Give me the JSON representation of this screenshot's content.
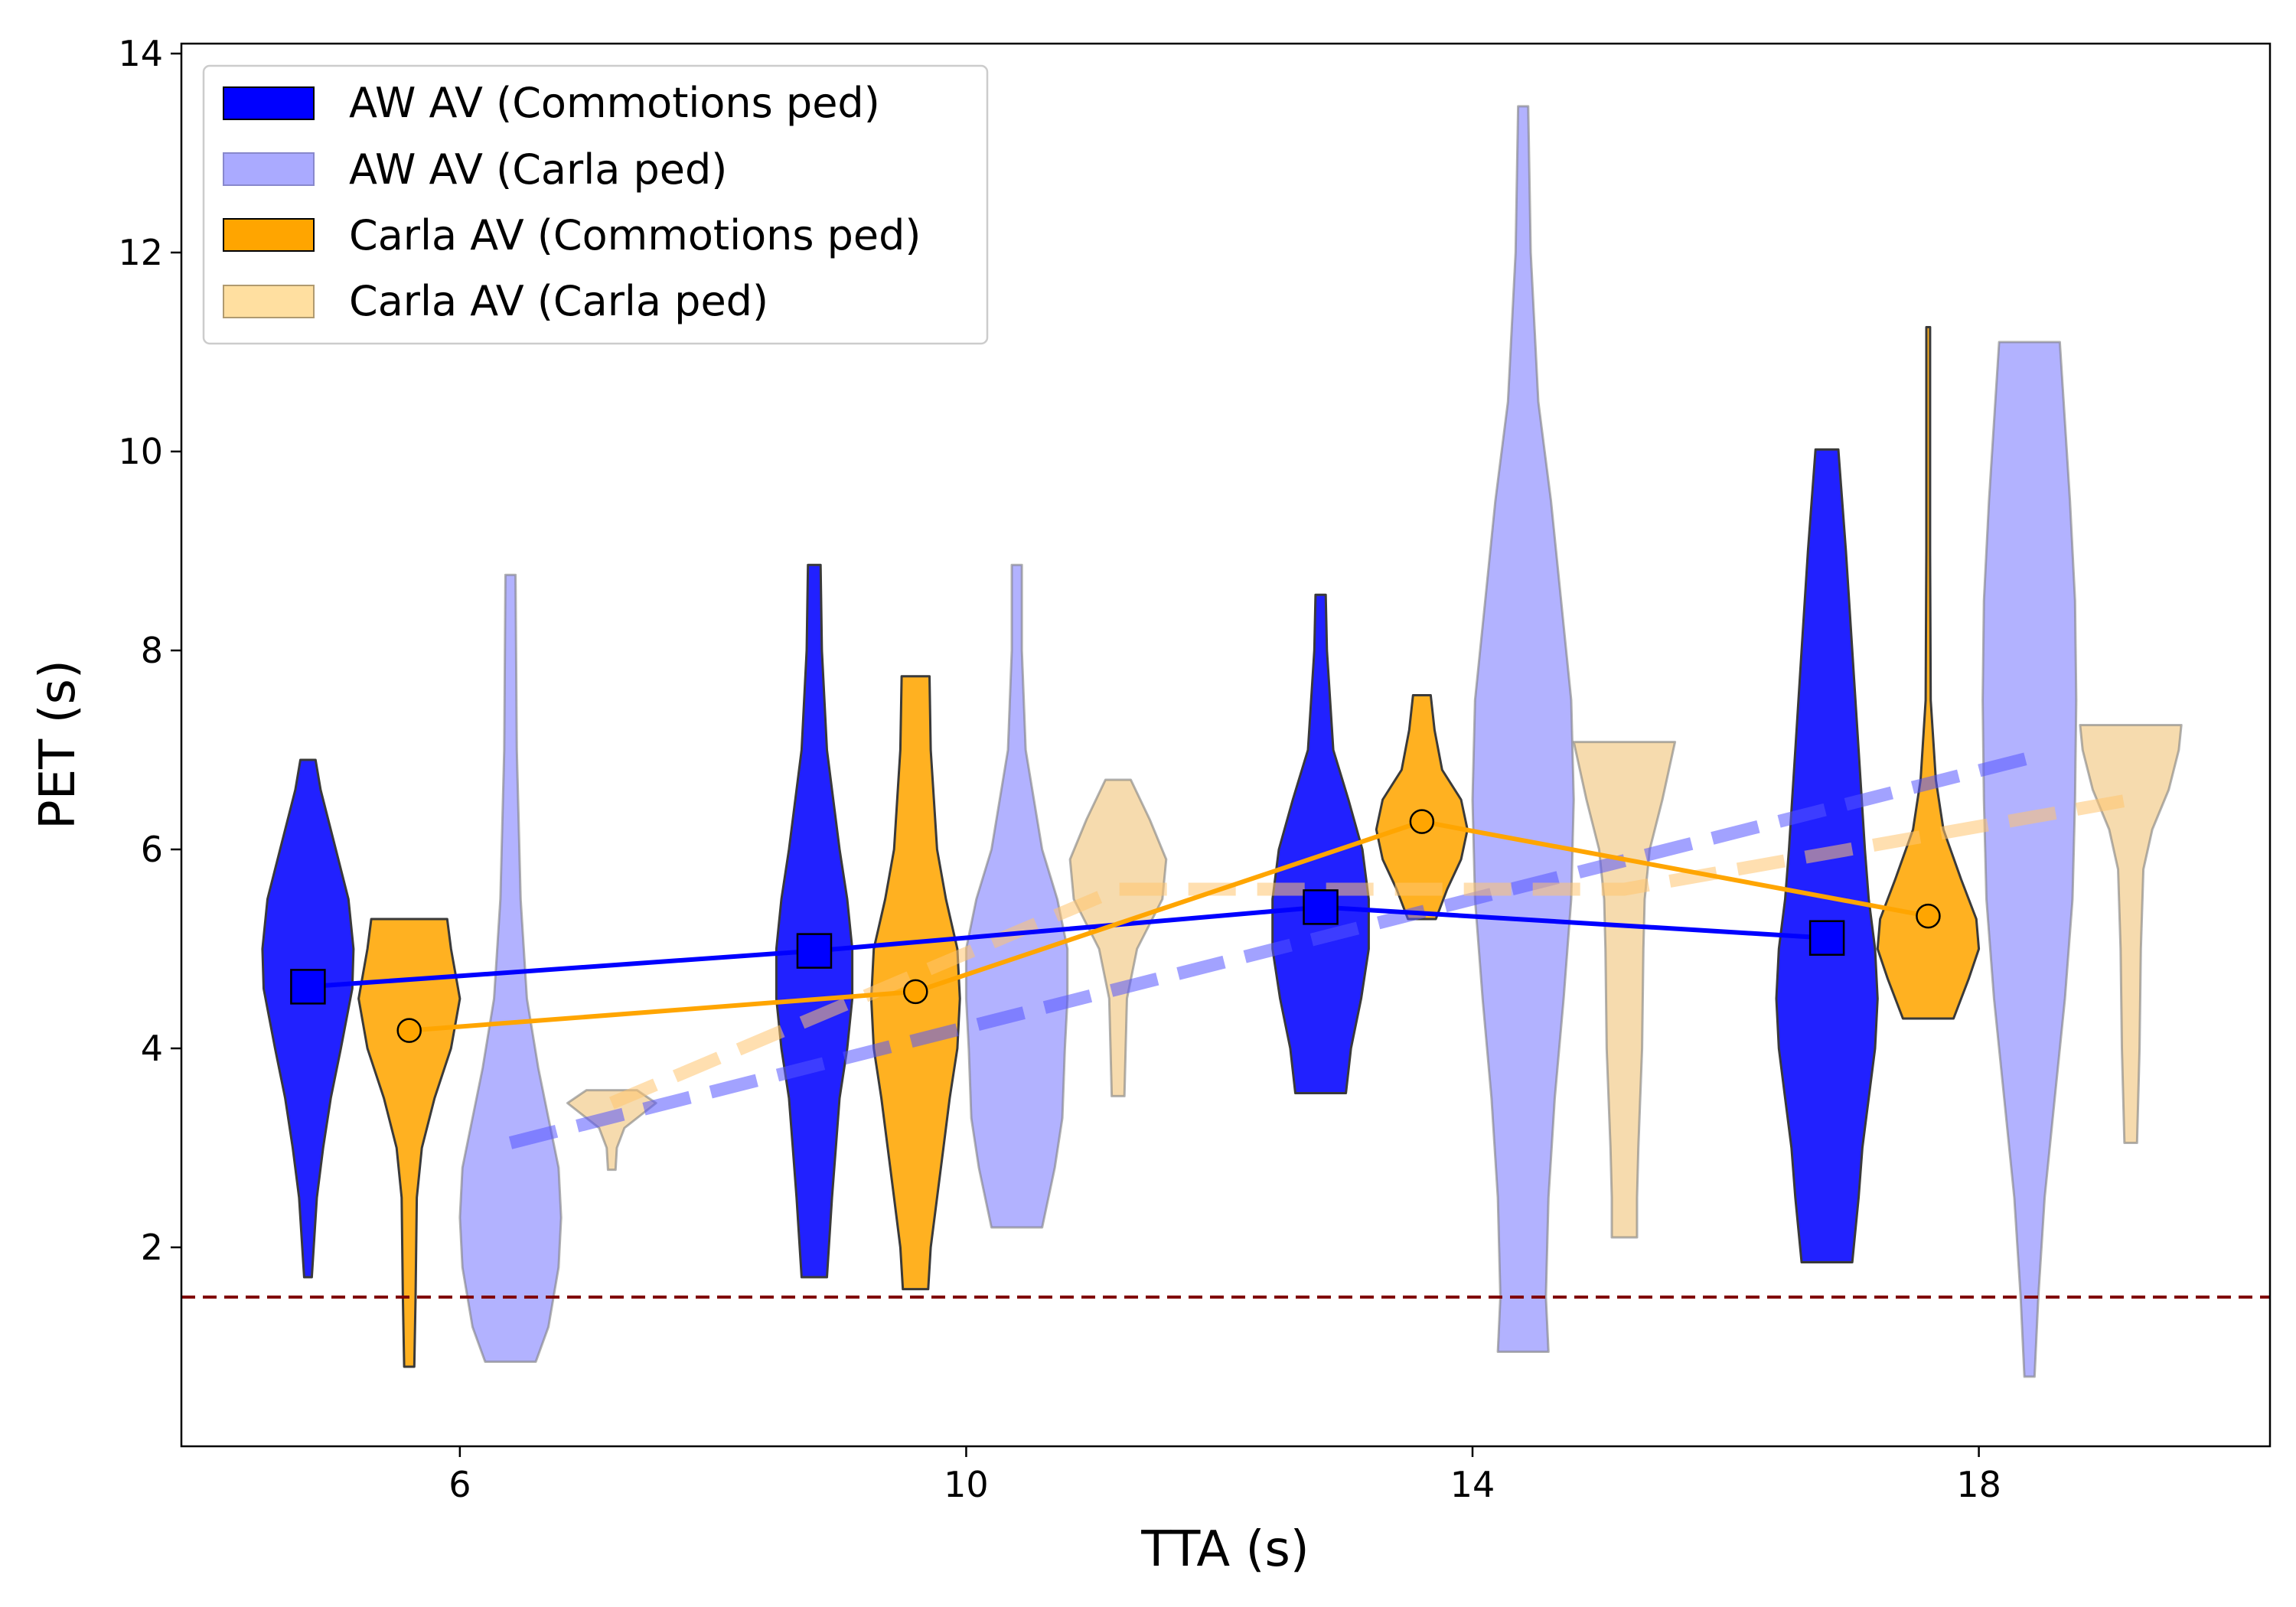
{
  "chart_data": {
    "type": "violin",
    "xlabel": "TTA (s)",
    "ylabel": "PET (s)",
    "xlim": [
      3.8,
      20.3
    ],
    "ylim": [
      0.0,
      14.1
    ],
    "xticks": [
      6,
      10,
      14,
      18
    ],
    "yticks": [
      2,
      4,
      6,
      8,
      10,
      12,
      14
    ],
    "legend_position": "top-left",
    "legend": [
      {
        "label": "AW AV (Commotions ped)",
        "color": "#0000ff",
        "opacity": 0.87
      },
      {
        "label": "AW AV (Carla ped)",
        "color": "#aaaaff",
        "opacity": 1.0
      },
      {
        "label": "Carla AV (Commotions ped)",
        "color": "#ffa500",
        "opacity": 1.0
      },
      {
        "label": "Carla AV (Carla ped)",
        "color": "#ffdfa0",
        "opacity": 1.0
      }
    ],
    "threshold_line": {
      "y": 1.5,
      "color": "#800000",
      "style": "dashed"
    },
    "violins": [
      {
        "series": "AW AV (Commotions ped)",
        "x": 4.8,
        "color": "#0000ff",
        "opacity": 0.87,
        "profile": [
          [
            1.7,
            0.03
          ],
          [
            2.5,
            0.07
          ],
          [
            3.0,
            0.12
          ],
          [
            3.5,
            0.18
          ],
          [
            4.0,
            0.26
          ],
          [
            4.6,
            0.35
          ],
          [
            5.0,
            0.36
          ],
          [
            5.5,
            0.32
          ],
          [
            6.0,
            0.22
          ],
          [
            6.6,
            0.1
          ],
          [
            6.9,
            0.06
          ]
        ]
      },
      {
        "series": "AW AV (Commotions ped)",
        "x": 8.8,
        "color": "#0000ff",
        "opacity": 0.87,
        "profile": [
          [
            1.7,
            0.1
          ],
          [
            2.5,
            0.14
          ],
          [
            3.0,
            0.17
          ],
          [
            3.5,
            0.2
          ],
          [
            4.0,
            0.26
          ],
          [
            4.5,
            0.3
          ],
          [
            5.0,
            0.3
          ],
          [
            5.5,
            0.26
          ],
          [
            6.0,
            0.2
          ],
          [
            7.0,
            0.1
          ],
          [
            8.0,
            0.06
          ],
          [
            8.86,
            0.05
          ]
        ]
      },
      {
        "series": "AW AV (Commotions ped)",
        "x": 12.8,
        "color": "#0000ff",
        "opacity": 0.87,
        "profile": [
          [
            3.55,
            0.2
          ],
          [
            4.0,
            0.24
          ],
          [
            4.5,
            0.32
          ],
          [
            5.0,
            0.38
          ],
          [
            5.5,
            0.38
          ],
          [
            6.0,
            0.33
          ],
          [
            6.5,
            0.22
          ],
          [
            7.0,
            0.1
          ],
          [
            8.0,
            0.05
          ],
          [
            8.56,
            0.04
          ]
        ]
      },
      {
        "series": "AW AV (Commotions ped)",
        "x": 16.8,
        "color": "#0000ff",
        "opacity": 0.87,
        "profile": [
          [
            1.85,
            0.2
          ],
          [
            2.5,
            0.25
          ],
          [
            3.0,
            0.28
          ],
          [
            3.5,
            0.33
          ],
          [
            4.0,
            0.38
          ],
          [
            4.5,
            0.4
          ],
          [
            5.0,
            0.38
          ],
          [
            5.5,
            0.33
          ],
          [
            6.0,
            0.3
          ],
          [
            7.0,
            0.25
          ],
          [
            8.0,
            0.2
          ],
          [
            9.0,
            0.15
          ],
          [
            10.02,
            0.09
          ]
        ]
      },
      {
        "series": "AW AV (Carla ped)",
        "x": 6.4,
        "color": "#aaaaff",
        "opacity": 0.9,
        "profile": [
          [
            0.85,
            0.2
          ],
          [
            1.2,
            0.3
          ],
          [
            1.8,
            0.38
          ],
          [
            2.3,
            0.4
          ],
          [
            2.8,
            0.38
          ],
          [
            3.3,
            0.3
          ],
          [
            3.8,
            0.22
          ],
          [
            4.5,
            0.13
          ],
          [
            5.5,
            0.08
          ],
          [
            7.0,
            0.05
          ],
          [
            8.76,
            0.04
          ]
        ]
      },
      {
        "series": "AW AV (Carla ped)",
        "x": 10.4,
        "color": "#aaaaff",
        "opacity": 0.9,
        "profile": [
          [
            2.2,
            0.2
          ],
          [
            2.8,
            0.3
          ],
          [
            3.3,
            0.36
          ],
          [
            4.0,
            0.38
          ],
          [
            4.5,
            0.4
          ],
          [
            5.0,
            0.4
          ],
          [
            5.5,
            0.32
          ],
          [
            6.0,
            0.2
          ],
          [
            7.0,
            0.07
          ],
          [
            8.0,
            0.04
          ],
          [
            8.86,
            0.04
          ]
        ]
      },
      {
        "series": "AW AV (Carla ped)",
        "x": 14.4,
        "color": "#aaaaff",
        "opacity": 0.9,
        "profile": [
          [
            0.95,
            0.2
          ],
          [
            1.5,
            0.18
          ],
          [
            2.5,
            0.2
          ],
          [
            3.5,
            0.25
          ],
          [
            4.5,
            0.32
          ],
          [
            5.5,
            0.38
          ],
          [
            6.5,
            0.4
          ],
          [
            7.5,
            0.38
          ],
          [
            8.5,
            0.3
          ],
          [
            9.5,
            0.22
          ],
          [
            10.5,
            0.12
          ],
          [
            12.0,
            0.06
          ],
          [
            13.47,
            0.04
          ]
        ]
      },
      {
        "series": "AW AV (Carla ped)",
        "x": 18.4,
        "color": "#aaaaff",
        "opacity": 0.9,
        "profile": [
          [
            0.7,
            0.04
          ],
          [
            1.5,
            0.07
          ],
          [
            2.5,
            0.12
          ],
          [
            3.5,
            0.2
          ],
          [
            4.5,
            0.28
          ],
          [
            5.5,
            0.34
          ],
          [
            6.5,
            0.36
          ],
          [
            7.5,
            0.37
          ],
          [
            8.5,
            0.36
          ],
          [
            9.5,
            0.32
          ],
          [
            10.5,
            0.27
          ],
          [
            11.1,
            0.24
          ]
        ]
      },
      {
        "series": "Carla AV (Commotions ped)",
        "x": 5.6,
        "color": "#ffa500",
        "opacity": 0.87,
        "profile": [
          [
            0.8,
            0.04
          ],
          [
            1.5,
            0.05
          ],
          [
            2.5,
            0.06
          ],
          [
            3.0,
            0.1
          ],
          [
            3.5,
            0.2
          ],
          [
            4.0,
            0.33
          ],
          [
            4.5,
            0.4
          ],
          [
            5.0,
            0.33
          ],
          [
            5.3,
            0.3
          ]
        ]
      },
      {
        "series": "Carla AV (Commotions ped)",
        "x": 9.6,
        "color": "#ffa500",
        "opacity": 0.87,
        "profile": [
          [
            1.58,
            0.1
          ],
          [
            2.0,
            0.12
          ],
          [
            2.5,
            0.17
          ],
          [
            3.0,
            0.22
          ],
          [
            3.5,
            0.27
          ],
          [
            4.0,
            0.33
          ],
          [
            4.5,
            0.35
          ],
          [
            5.0,
            0.33
          ],
          [
            5.5,
            0.24
          ],
          [
            6.0,
            0.17
          ],
          [
            7.0,
            0.12
          ],
          [
            7.74,
            0.11
          ]
        ]
      },
      {
        "series": "Carla AV (Commotions ped)",
        "x": 13.6,
        "color": "#ffa500",
        "opacity": 0.87,
        "profile": [
          [
            5.3,
            0.11
          ],
          [
            5.6,
            0.2
          ],
          [
            5.9,
            0.31
          ],
          [
            6.2,
            0.36
          ],
          [
            6.5,
            0.31
          ],
          [
            6.8,
            0.16
          ],
          [
            7.2,
            0.1
          ],
          [
            7.55,
            0.07
          ]
        ]
      },
      {
        "series": "Carla AV (Commotions ped)",
        "x": 17.6,
        "color": "#ffa500",
        "opacity": 0.87,
        "profile": [
          [
            4.3,
            0.2
          ],
          [
            4.7,
            0.32
          ],
          [
            5.0,
            0.4
          ],
          [
            5.3,
            0.38
          ],
          [
            5.7,
            0.26
          ],
          [
            6.2,
            0.12
          ],
          [
            6.7,
            0.06
          ],
          [
            7.5,
            0.02
          ],
          [
            9.0,
            0.015
          ],
          [
            11.25,
            0.015
          ]
        ]
      },
      {
        "series": "Carla AV (Carla ped)",
        "x": 7.2,
        "color": "#f5d5a0",
        "opacity": 0.85,
        "profile": [
          [
            2.78,
            0.03
          ],
          [
            3.0,
            0.04
          ],
          [
            3.2,
            0.1
          ],
          [
            3.35,
            0.25
          ],
          [
            3.45,
            0.35
          ],
          [
            3.58,
            0.2
          ]
        ]
      },
      {
        "series": "Carla AV (Carla ped)",
        "x": 11.2,
        "color": "#f5d5a0",
        "opacity": 0.85,
        "profile": [
          [
            3.52,
            0.05
          ],
          [
            4.0,
            0.06
          ],
          [
            4.5,
            0.07
          ],
          [
            5.0,
            0.15
          ],
          [
            5.5,
            0.35
          ],
          [
            5.9,
            0.38
          ],
          [
            6.3,
            0.25
          ],
          [
            6.7,
            0.1
          ]
        ]
      },
      {
        "series": "Carla AV (Carla ped)",
        "x": 15.2,
        "color": "#f5d5a0",
        "opacity": 0.85,
        "profile": [
          [
            2.1,
            0.1
          ],
          [
            2.5,
            0.1
          ],
          [
            3.0,
            0.11
          ],
          [
            4.0,
            0.14
          ],
          [
            5.0,
            0.15
          ],
          [
            5.5,
            0.16
          ],
          [
            6.0,
            0.2
          ],
          [
            6.5,
            0.3
          ],
          [
            7.08,
            0.4
          ]
        ]
      },
      {
        "series": "Carla AV (Carla ped)",
        "x": 19.2,
        "color": "#f5d5a0",
        "opacity": 0.85,
        "profile": [
          [
            3.05,
            0.05
          ],
          [
            4.0,
            0.07
          ],
          [
            5.0,
            0.08
          ],
          [
            5.8,
            0.1
          ],
          [
            6.2,
            0.17
          ],
          [
            6.6,
            0.3
          ],
          [
            7.0,
            0.38
          ],
          [
            7.25,
            0.4
          ]
        ]
      }
    ],
    "mean_lines": [
      {
        "name": "AW AV (Commotions ped)",
        "color": "#0000ff",
        "marker": "square",
        "points": [
          [
            4.8,
            4.62
          ],
          [
            8.8,
            4.98
          ],
          [
            12.8,
            5.42
          ],
          [
            16.8,
            5.11
          ]
        ]
      },
      {
        "name": "Carla AV (Commotions ped)",
        "color": "#ffa500",
        "marker": "circle",
        "points": [
          [
            5.6,
            4.18
          ],
          [
            9.6,
            4.57
          ],
          [
            13.6,
            6.28
          ],
          [
            17.6,
            5.33
          ]
        ]
      }
    ],
    "trend_lines": [
      {
        "name": "AW AV (Carla ped)",
        "color": "#5555ff",
        "opacity": 0.55,
        "style": "dashed",
        "points": [
          [
            6.4,
            3.05
          ],
          [
            18.4,
            6.92
          ]
        ]
      },
      {
        "name": "Carla AV (Carla ped)",
        "color": "#ffc570",
        "opacity": 0.55,
        "style": "dashed",
        "points": [
          [
            7.2,
            3.45
          ],
          [
            11.2,
            5.6
          ],
          [
            15.2,
            5.6
          ],
          [
            19.2,
            6.5
          ]
        ]
      }
    ]
  }
}
